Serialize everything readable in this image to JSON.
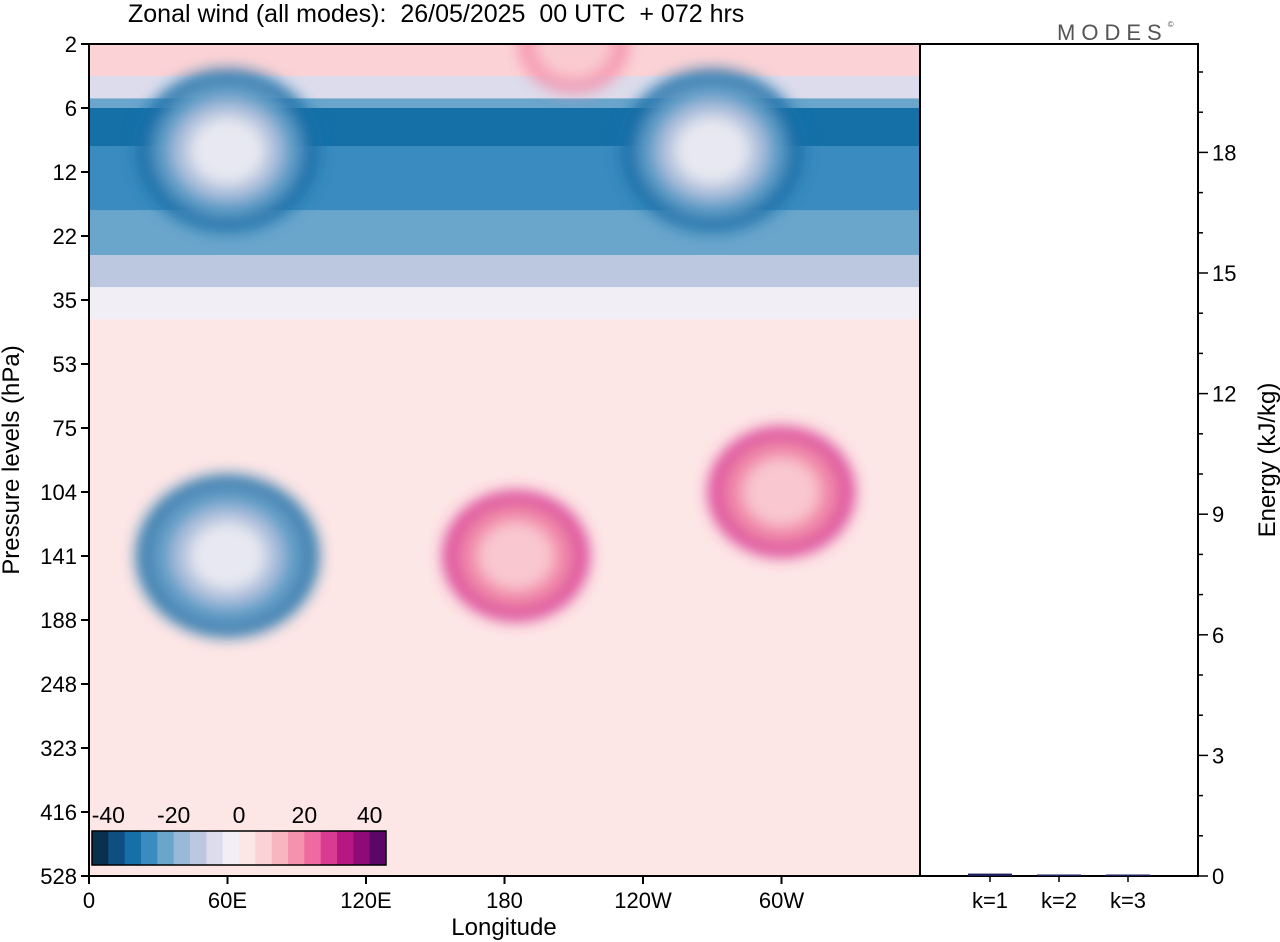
{
  "page": {
    "title": "Zonal wind (all modes):  26/05/2025  00 UTC  + 072 hrs",
    "brand": "MODES",
    "brand_mark": "©"
  },
  "chart_data": [
    {
      "type": "heatmap",
      "title": "Zonal wind (all modes):  26/05/2025  00 UTC  + 072 hrs",
      "xlabel": "Longitude",
      "ylabel": "Pressure levels (hPa)",
      "x_ticks": [
        "0",
        "60E",
        "120E",
        "180",
        "120W",
        "60W"
      ],
      "x_tick_values": [
        0,
        60,
        120,
        180,
        240,
        300
      ],
      "xlim": [
        0,
        360
      ],
      "y_ticks": [
        "2",
        "6",
        "12",
        "22",
        "35",
        "53",
        "75",
        "104",
        "141",
        "188",
        "248",
        "323",
        "416",
        "528"
      ],
      "y_scale": "categorical pressure levels, top to bottom",
      "colorbar": {
        "tick_labels": [
          "-40",
          "-20",
          "0",
          "20",
          "40"
        ],
        "range": [
          -45,
          45
        ],
        "step": 5,
        "colors": [
          "#0b2f4f",
          "#0f4f80",
          "#1670a8",
          "#3a8bbf",
          "#6aa5cc",
          "#98b9d8",
          "#bcc7e0",
          "#dcdcec",
          "#f1eff5",
          "#fde6e6",
          "#fbd3d6",
          "#f8b7c0",
          "#f592ad",
          "#ee6aa0",
          "#d93a92",
          "#b71782",
          "#8e0a76",
          "#5c0668"
        ]
      },
      "features": [
        {
          "lon": 60,
          "level": "141",
          "value": -35
        },
        {
          "lon": 185,
          "level": "141",
          "value": 25
        },
        {
          "lon": 300,
          "level": "104",
          "value": 25
        },
        {
          "lon": 210,
          "level": "2",
          "value": 15
        },
        {
          "lon": 60,
          "level": "10",
          "value": -35
        },
        {
          "lon": 270,
          "level": "10",
          "value": -35
        }
      ]
    },
    {
      "type": "bar",
      "ylabel": "Energy (kJ/kg)",
      "categories": [
        "k=1",
        "k=2",
        "k=3"
      ],
      "values": [
        0.06,
        0.03,
        0.02
      ],
      "ylim": [
        0,
        20
      ],
      "y_ticks": [
        "0",
        "3",
        "6",
        "9",
        "12",
        "15",
        "18"
      ],
      "bar_color": "#1a1f5c"
    }
  ]
}
